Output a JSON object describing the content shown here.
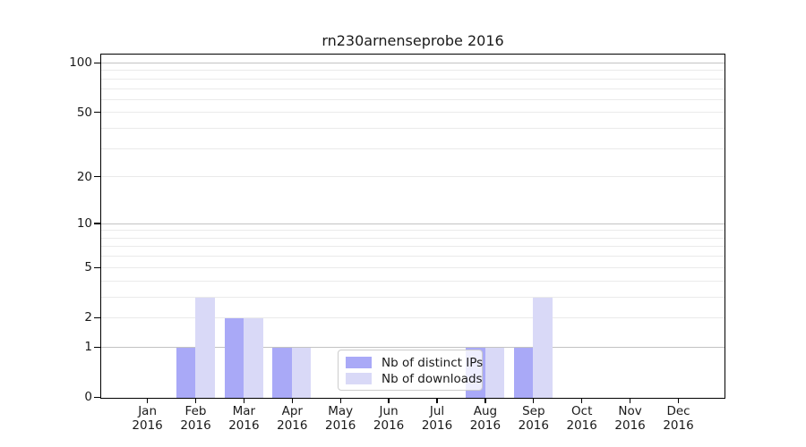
{
  "figure": {
    "background": "#ffffff"
  },
  "chart_data": {
    "type": "bar",
    "title": "rn230arnenseprobe 2016",
    "categories": [
      "Jan",
      "Feb",
      "Mar",
      "Apr",
      "May",
      "Jun",
      "Jul",
      "Aug",
      "Sep",
      "Oct",
      "Nov",
      "Dec"
    ],
    "year": "2016",
    "series": [
      {
        "name": "Nb of distinct IPs",
        "color": "#a9a9f7",
        "values": [
          0,
          1,
          2,
          1,
          0,
          0,
          0,
          1,
          1,
          0,
          0,
          0
        ]
      },
      {
        "name": "Nb of downloads",
        "color": "#d9d9f7",
        "values": [
          0,
          3,
          2,
          1,
          0,
          0,
          0,
          1,
          3,
          0,
          0,
          0
        ]
      }
    ],
    "y_ticks": [
      0,
      1,
      2,
      5,
      10,
      20,
      50,
      100
    ],
    "y_minor_gridlines": [
      2,
      3,
      4,
      5,
      6,
      7,
      8,
      9,
      20,
      30,
      40,
      50,
      60,
      70,
      80,
      90
    ],
    "y_major_gridlines": [
      1,
      10,
      100
    ],
    "y_scale": "log1p",
    "ylim": [
      0,
      100
    ],
    "grid": true,
    "legend_position": "lower center",
    "colors": {
      "grid_minor": "#eaeaea",
      "grid_major": "#c3c3c3",
      "spine": "#000000",
      "legend_border": "#cccccc",
      "text": "#1a1a1a"
    }
  }
}
